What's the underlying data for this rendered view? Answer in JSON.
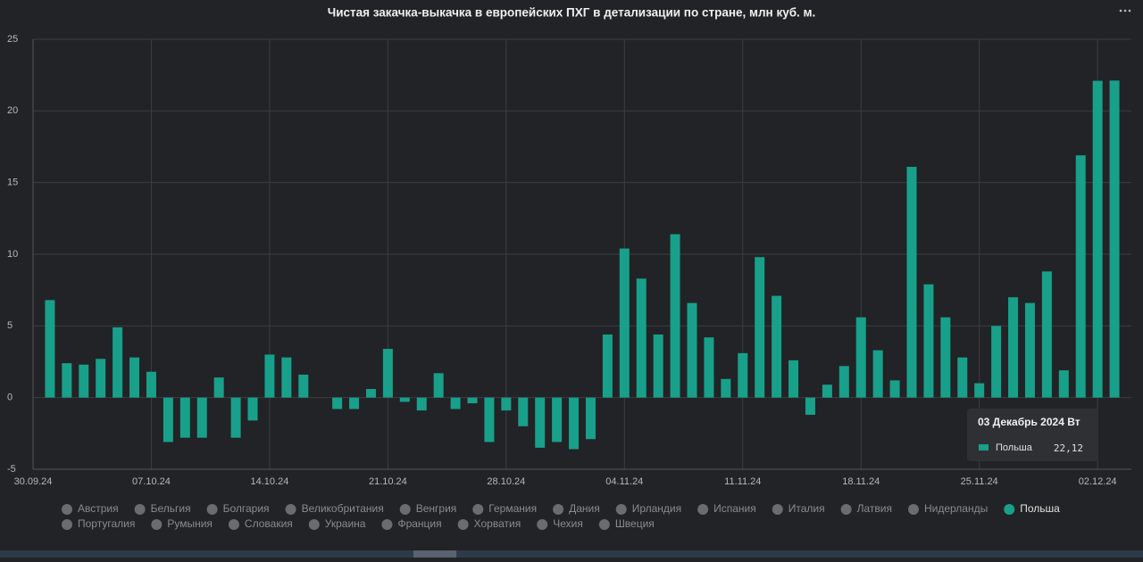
{
  "chart_data": {
    "type": "bar",
    "title": "Чистая закачка-выкачка в европейских ПХГ в детализации по стране, млн куб. м.",
    "categories": [
      "30.09.24",
      null,
      null,
      null,
      null,
      null,
      null,
      "07.10.24",
      null,
      null,
      null,
      null,
      null,
      null,
      "14.10.24",
      null,
      null,
      null,
      null,
      null,
      null,
      "21.10.24",
      null,
      null,
      null,
      null,
      null,
      null,
      "28.10.24",
      null,
      null,
      null,
      null,
      null,
      null,
      "04.11.24",
      null,
      null,
      null,
      null,
      null,
      null,
      "11.11.24",
      null,
      null,
      null,
      null,
      null,
      null,
      "18.11.24",
      null,
      null,
      null,
      null,
      null,
      null,
      "25.11.24",
      null,
      null,
      null,
      null,
      null,
      null,
      "02.12.24",
      null
    ],
    "series": [
      {
        "name": "Польша",
        "color": "#18a08a",
        "values": [
          null,
          6.8,
          2.4,
          2.3,
          2.7,
          4.9,
          2.8,
          1.8,
          -3.1,
          -2.8,
          -2.8,
          1.4,
          -2.8,
          -1.6,
          3.0,
          2.8,
          1.6,
          null,
          -0.8,
          -0.8,
          0.6,
          3.4,
          -0.3,
          -0.9,
          1.7,
          -0.8,
          -0.4,
          -3.1,
          -0.9,
          -2.0,
          -3.5,
          -3.1,
          -3.6,
          -2.9,
          4.4,
          10.4,
          8.3,
          4.4,
          11.4,
          6.6,
          4.2,
          1.3,
          3.1,
          9.8,
          7.1,
          2.6,
          -1.2,
          0.9,
          2.2,
          5.6,
          3.3,
          1.2,
          16.1,
          7.9,
          5.6,
          2.8,
          1.0,
          5.0,
          7.0,
          6.6,
          8.8,
          1.9,
          16.9,
          22.1,
          22.12
        ]
      }
    ],
    "ylim": [
      -5,
      25
    ],
    "yticks": [
      -5,
      0,
      5,
      10,
      15,
      20,
      25
    ],
    "grid": true,
    "legend_hidden": [
      "Австрия",
      "Бельгия",
      "Болгария",
      "Великобритания",
      "Венгрия",
      "Германия",
      "Дания",
      "Ирландия",
      "Испания",
      "Италия",
      "Латвия",
      "Нидерланды",
      "Португалия",
      "Румыния",
      "Словакия",
      "Украина",
      "Франция",
      "Хорватия",
      "Чехия",
      "Швеция"
    ],
    "tooltip": {
      "title": "03 Декабрь 2024 Вт",
      "value": 22.12,
      "label": "22,12"
    }
  }
}
